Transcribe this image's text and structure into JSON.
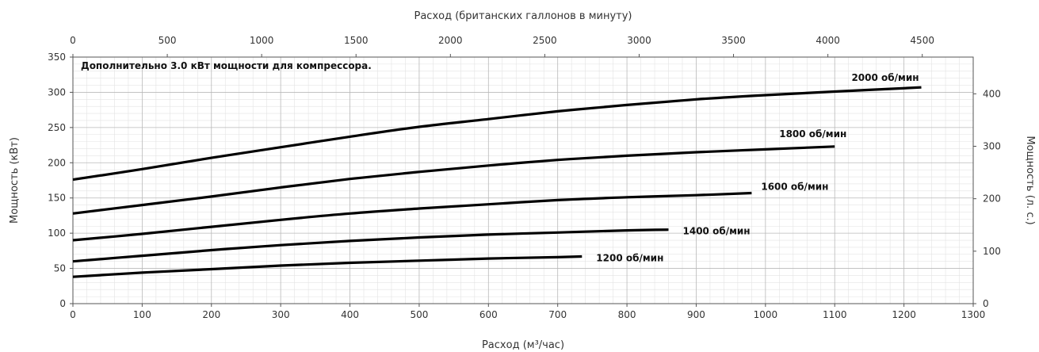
{
  "chart_data": {
    "type": "line",
    "title": "",
    "annotation": "Дополнительно 3.0 кВт мощности для компрессора.",
    "xlabel": "Расход (м³/час)",
    "ylabel": "Мощность (кВт)",
    "x2label": "Расход (британских галлонов в минуту)",
    "y2label": "Мощность (л. с.)",
    "xlim": [
      0,
      1300
    ],
    "ylim": [
      0,
      350
    ],
    "x2lim": [
      0,
      4770
    ],
    "y2lim": [
      0,
      470
    ],
    "xticks": [
      "0",
      "100",
      "200",
      "300",
      "400",
      "500",
      "600",
      "700",
      "800",
      "900",
      "1000",
      "1100",
      "1200",
      "1300"
    ],
    "yticks": [
      "0",
      "50",
      "100",
      "150",
      "200",
      "250",
      "300",
      "350"
    ],
    "x2ticks": [
      "0",
      "500",
      "1000",
      "1500",
      "2000",
      "2500",
      "3000",
      "3500",
      "4000",
      "4500"
    ],
    "y2ticks": [
      "0",
      "100",
      "200",
      "300",
      "400"
    ],
    "grid": true,
    "series": [
      {
        "name": "2000 об/мин",
        "x": [
          0,
          100,
          200,
          300,
          400,
          500,
          600,
          700,
          800,
          900,
          1000,
          1100,
          1225
        ],
        "y": [
          176,
          191,
          207,
          222,
          237,
          251,
          262,
          273,
          282,
          290,
          296,
          301,
          307
        ]
      },
      {
        "name": "1800 об/мин",
        "x": [
          0,
          100,
          200,
          300,
          400,
          500,
          600,
          700,
          800,
          900,
          1000,
          1100
        ],
        "y": [
          128,
          140,
          152,
          165,
          177,
          187,
          196,
          204,
          210,
          215,
          219,
          223
        ]
      },
      {
        "name": "1600 об/мин",
        "x": [
          0,
          100,
          200,
          300,
          400,
          500,
          600,
          700,
          800,
          900,
          980
        ],
        "y": [
          90,
          99,
          109,
          119,
          128,
          135,
          141,
          147,
          151,
          154,
          157
        ]
      },
      {
        "name": "1400 об/мин",
        "x": [
          0,
          100,
          200,
          300,
          400,
          500,
          600,
          700,
          800,
          860
        ],
        "y": [
          60,
          68,
          76,
          83,
          89,
          94,
          98,
          101,
          104,
          105
        ]
      },
      {
        "name": "1200 об/мин",
        "x": [
          0,
          100,
          200,
          300,
          400,
          500,
          600,
          700,
          735
        ],
        "y": [
          38,
          44,
          49,
          54,
          58,
          61,
          64,
          66,
          67
        ]
      }
    ]
  }
}
